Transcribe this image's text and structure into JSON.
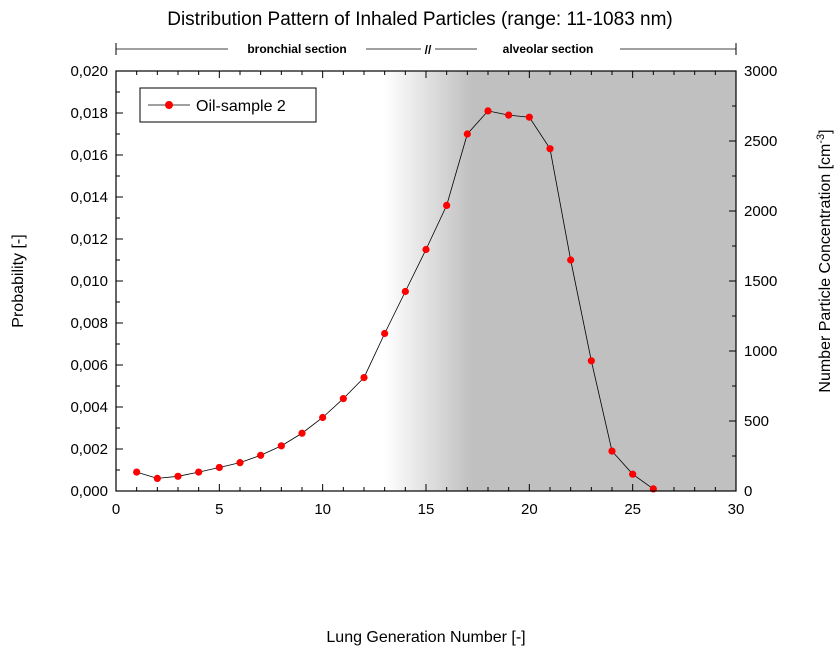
{
  "chart_data": {
    "type": "line",
    "title": "Distribution Pattern of Inhaled Particles (range: 11-1083 nm)",
    "xlabel": "Lung Generation Number [-]",
    "ylabel": "Probability [-]",
    "y2label": "Number Particle Concentration [cm",
    "y2label_sup": "-3",
    "y2label_end": "]",
    "xlim": [
      0,
      30
    ],
    "ylim": [
      0,
      0.02
    ],
    "y2lim": [
      0,
      3000
    ],
    "xticks": [
      0,
      5,
      10,
      15,
      20,
      25,
      30
    ],
    "yticks": [
      "0,000",
      "0,002",
      "0,004",
      "0,006",
      "0,008",
      "0,010",
      "0,012",
      "0,014",
      "0,016",
      "0,018",
      "0,020"
    ],
    "y2ticks": [
      0,
      500,
      1000,
      1500,
      2000,
      2500,
      3000
    ],
    "sections": {
      "left_label": "bronchial section",
      "right_label": "alveolar section",
      "break_mark": "//"
    },
    "shading": {
      "gradient_from_x": 13,
      "solid_from_x": 17.2,
      "to_x": 30,
      "color": "#c0c0c0"
    },
    "legend": {
      "position": "top-left"
    },
    "series": [
      {
        "name": "Oil-sample 2",
        "color": "#ff0000",
        "line_color": "#000000",
        "x": [
          1,
          2,
          3,
          4,
          5,
          6,
          7,
          8,
          9,
          10,
          11,
          12,
          13,
          14,
          15,
          16,
          17,
          18,
          19,
          20,
          21,
          22,
          23,
          24,
          25,
          26
        ],
        "y": [
          0.0009,
          0.0006,
          0.0007,
          0.0009,
          0.00112,
          0.00135,
          0.0017,
          0.00215,
          0.00275,
          0.0035,
          0.0044,
          0.0054,
          0.0075,
          0.0095,
          0.0115,
          0.0136,
          0.017,
          0.0181,
          0.0179,
          0.0178,
          0.0163,
          0.011,
          0.0062,
          0.0019,
          0.0008,
          0.0001
        ]
      }
    ]
  }
}
